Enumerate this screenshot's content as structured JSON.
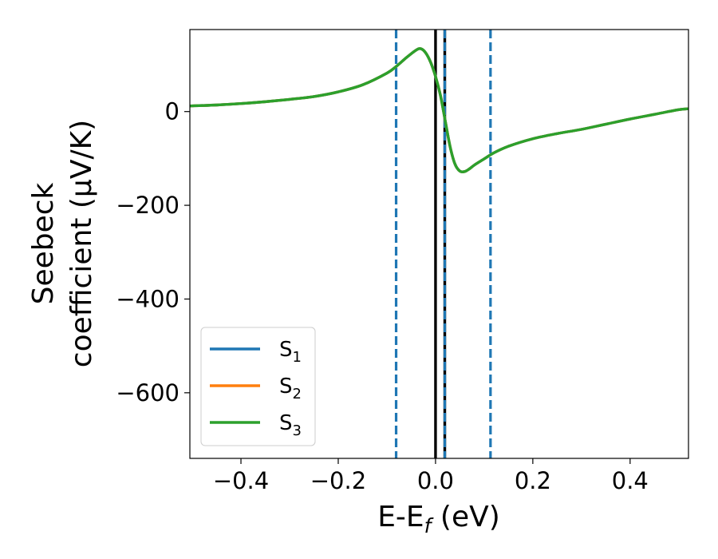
{
  "chart_data": {
    "type": "line",
    "title": "",
    "xlabel": "E-E",
    "xlabel_subscript": "f",
    "xlabel_unit": " (eV)",
    "ylabel_line1": "Seebeck",
    "ylabel_line2": "coefficient  (μV/K)",
    "xlim": [
      -0.505,
      0.52
    ],
    "ylim": [
      -740,
      175
    ],
    "x_ticks": [
      -0.4,
      -0.2,
      0.0,
      0.2,
      0.4
    ],
    "x_tick_labels": [
      "−0.4",
      "−0.2",
      "0.0",
      "0.2",
      "0.4"
    ],
    "y_ticks": [
      0,
      -200,
      -400,
      -600
    ],
    "y_tick_labels": [
      "0",
      "−200",
      "−400",
      "−600"
    ],
    "grid": false,
    "legend_position": "lower-left",
    "vertical_lines": [
      {
        "x": -0.081,
        "style": "dashed",
        "color": "#1f77b4"
      },
      {
        "x": 0.0,
        "style": "solid",
        "color": "#000000"
      },
      {
        "x": 0.019,
        "style": "solid",
        "color": "#000000"
      },
      {
        "x": 0.019,
        "style": "dashed",
        "color": "#1f77b4"
      },
      {
        "x": 0.113,
        "style": "dashed",
        "color": "#1f77b4"
      }
    ],
    "x": [
      -0.505,
      -0.45,
      -0.4,
      -0.35,
      -0.3,
      -0.25,
      -0.2,
      -0.15,
      -0.1,
      -0.08,
      -0.06,
      -0.04,
      -0.03,
      -0.02,
      -0.01,
      0.0,
      0.01,
      0.02,
      0.03,
      0.04,
      0.05,
      0.06,
      0.07,
      0.08,
      0.1,
      0.12,
      0.15,
      0.2,
      0.25,
      0.3,
      0.35,
      0.4,
      0.45,
      0.5,
      0.52
    ],
    "series": [
      {
        "name": "S",
        "sub": "1",
        "color": "#1f77b4",
        "values": [
          12,
          14,
          17,
          21,
          26,
          32,
          42,
          57,
          82,
          97,
          115,
          131,
          134,
          125,
          105,
          75,
          35,
          -20,
          -75,
          -112,
          -127,
          -128,
          -122,
          -114,
          -101,
          -88,
          -74,
          -58,
          -47,
          -38,
          -27,
          -16,
          -6,
          4,
          6
        ]
      },
      {
        "name": "S",
        "sub": "2",
        "color": "#ff7f0e",
        "values": [
          12,
          14,
          17,
          21,
          26,
          32,
          42,
          57,
          82,
          97,
          115,
          131,
          134,
          125,
          105,
          75,
          35,
          -20,
          -75,
          -112,
          -127,
          -128,
          -122,
          -114,
          -101,
          -88,
          -74,
          -58,
          -47,
          -38,
          -27,
          -16,
          -6,
          4,
          6
        ]
      },
      {
        "name": "S",
        "sub": "3",
        "color": "#2ca02c",
        "values": [
          12,
          14,
          17,
          21,
          26,
          32,
          42,
          57,
          82,
          97,
          115,
          131,
          134,
          125,
          105,
          75,
          35,
          -20,
          -75,
          -112,
          -127,
          -128,
          -122,
          -114,
          -101,
          -88,
          -74,
          -58,
          -47,
          -38,
          -27,
          -16,
          -6,
          4,
          6
        ]
      }
    ]
  }
}
